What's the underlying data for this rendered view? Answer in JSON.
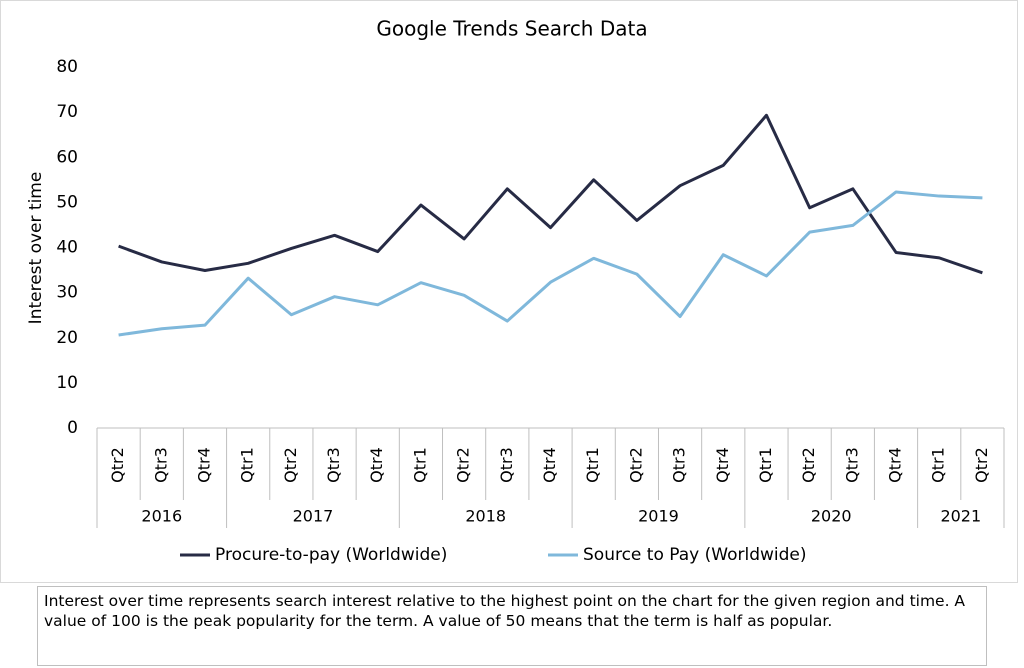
{
  "chart_data": {
    "type": "line",
    "title": "Google Trends Search Data",
    "y_label": "Interest over time",
    "groups": [
      {
        "name": "2016",
        "categories": [
          "Qtr2",
          "Qtr3",
          "Qtr4"
        ]
      },
      {
        "name": "2017",
        "categories": [
          "Qtr1",
          "Qtr2",
          "Qtr3",
          "Qtr4"
        ]
      },
      {
        "name": "2018",
        "categories": [
          "Qtr1",
          "Qtr2",
          "Qtr3",
          "Qtr4"
        ]
      },
      {
        "name": "2019",
        "categories": [
          "Qtr1",
          "Qtr2",
          "Qtr3",
          "Qtr4"
        ]
      },
      {
        "name": "2020",
        "categories": [
          "Qtr1",
          "Qtr2",
          "Qtr3",
          "Qtr4"
        ]
      },
      {
        "name": "2021",
        "categories": [
          "Qtr1",
          "Qtr2"
        ]
      }
    ],
    "series": [
      {
        "name": "Procure-to-pay (Worldwide)",
        "color": "#272b45",
        "values": [
          40.3,
          36.8,
          34.9,
          36.5,
          39.8,
          42.7,
          39.1,
          49.4,
          41.9,
          53,
          44.4,
          55,
          46,
          53.7,
          58.2,
          69.3,
          48.8,
          53,
          38.9,
          37.7,
          34.4
        ]
      },
      {
        "name": "Source to Pay (Worldwide)",
        "color": "#7fb8db",
        "values": [
          20.6,
          22,
          22.8,
          33.2,
          25.1,
          29.1,
          27.3,
          32.2,
          29.4,
          23.7,
          32.3,
          37.6,
          34.1,
          24.7,
          38.4,
          33.7,
          43.4,
          44.9,
          52.3,
          51.4,
          51
        ]
      }
    ],
    "ylim": [
      0,
      80
    ],
    "yticks": [
      0,
      10,
      20,
      30,
      40,
      50,
      60,
      70,
      80
    ],
    "grid": false,
    "legend": "bottom"
  },
  "note": "Interest over time represents search interest relative to the highest point on the chart for the given region and time. A value of 100 is the peak popularity for the term. A value of 50 means that the term is half as popular."
}
